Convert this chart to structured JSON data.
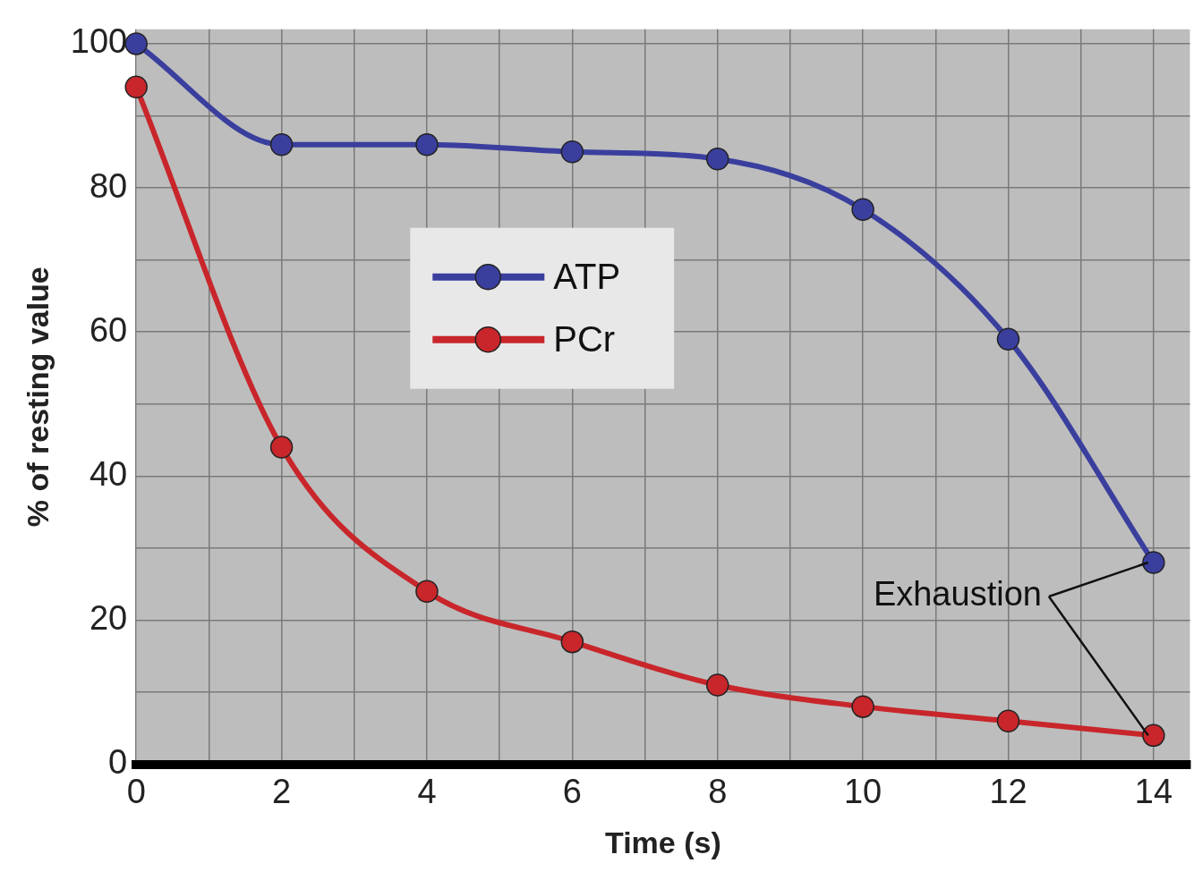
{
  "chart_data": {
    "type": "line",
    "xlabel": "Time (s)",
    "ylabel": "% of resting value",
    "x": [
      0,
      2,
      4,
      6,
      8,
      10,
      12,
      14
    ],
    "series": [
      {
        "name": "ATP",
        "color": "#3a3f9e",
        "values": [
          100,
          86,
          86,
          85,
          84,
          77,
          59,
          28
        ]
      },
      {
        "name": "PCr",
        "color": "#c8262b",
        "values": [
          94,
          44,
          24,
          17,
          11,
          8,
          6,
          4
        ]
      }
    ],
    "xlim": [
      0,
      14.5
    ],
    "ylim": [
      0,
      102
    ],
    "xticks": [
      0,
      {
        "value": 1,
        "label": null
      },
      2,
      {
        "value": 3,
        "label": null
      },
      4,
      {
        "value": 5,
        "label": null
      },
      6,
      {
        "value": 7,
        "label": null
      },
      8,
      {
        "value": 9,
        "label": null
      },
      10,
      {
        "value": 11,
        "label": null
      },
      12,
      {
        "value": 13,
        "label": null
      },
      14
    ],
    "yticks": [
      0,
      {
        "value": 10,
        "label": null
      },
      20,
      {
        "value": 30,
        "label": null
      },
      40,
      {
        "value": 50,
        "label": null
      },
      60,
      {
        "value": 70,
        "label": null
      },
      80,
      {
        "value": 90,
        "label": null
      },
      100
    ],
    "grid": true,
    "legend": "top",
    "marker": "circle",
    "line_style": "solid",
    "annotations": [
      {
        "text": "Exhaustion",
        "x": 14,
        "y": 28
      }
    ]
  }
}
